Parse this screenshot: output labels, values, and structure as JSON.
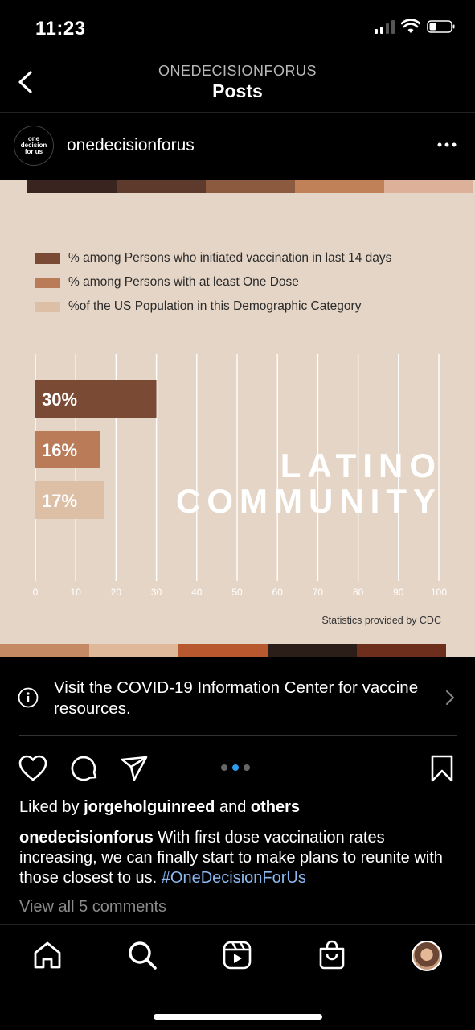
{
  "status_bar": {
    "time": "11:23"
  },
  "header": {
    "account": "ONEDECISIONFORUS",
    "title": "Posts"
  },
  "post": {
    "avatar_text": [
      "one",
      "decision",
      "for us"
    ],
    "username": "onedecisionforus"
  },
  "image": {
    "legend": [
      {
        "label": "% among Persons who initiated vaccination in last 14 days",
        "color": "#7a4a35"
      },
      {
        "label": "% among Persons with at least One Dose",
        "color": "#b97b58"
      },
      {
        "label": "%of the US Population in this Demographic Category",
        "color": "#dcbfa4"
      }
    ],
    "overlay_line1": "LATINO",
    "overlay_line2": "COMMUNITY",
    "source": "Statistics provided by CDC",
    "top_stripe_colors": [
      "#3a2420",
      "#5e3a2c",
      "#8c5a3e",
      "#c08058",
      "#ddb09a"
    ],
    "bottom_stripe_colors": [
      "#c58a63",
      "#dfb89a",
      "#b8582e",
      "#2b1d18",
      "#6e2e1c"
    ]
  },
  "chart_data": {
    "type": "bar",
    "orientation": "horizontal",
    "series": [
      {
        "name": "% among Persons who initiated vaccination in last 14 days",
        "values": [
          30
        ],
        "label": "30%",
        "color": "#7a4a35"
      },
      {
        "name": "% among Persons with at least One Dose",
        "values": [
          16
        ],
        "label": "16%",
        "color": "#b97b58"
      },
      {
        "name": "%of the US Population in this Demographic Category",
        "values": [
          17
        ],
        "label": "17%",
        "color": "#dcbfa4"
      }
    ],
    "xlim": [
      0,
      100
    ],
    "xticks": [
      0,
      10,
      20,
      30,
      40,
      50,
      60,
      70,
      80,
      90,
      100
    ],
    "grid": true,
    "legend_position": "top-left"
  },
  "info_banner": {
    "text": "Visit the COVID-19 Information Center for vaccine resources."
  },
  "carousel": {
    "count": 3,
    "active": 1
  },
  "likes": {
    "prefix": "Liked by ",
    "user": "jorgeholguinreed",
    "middle": " and ",
    "others": "others"
  },
  "caption": {
    "user": "onedecisionforus",
    "text": " With first dose vaccination rates increasing, we can finally start to make plans to reunite with those closest to us. ",
    "hashtag": "#OneDecisionForUs"
  },
  "comments_link": "View all 5 comments",
  "icons": {
    "back": "chevron-left-icon",
    "more": "more-horizontal-icon",
    "info": "info-icon",
    "like": "heart-icon",
    "comment": "comment-icon",
    "share": "send-icon",
    "save": "bookmark-icon",
    "home": "home-icon",
    "search": "search-icon",
    "reels": "reels-icon",
    "shop": "shop-bag-icon"
  }
}
